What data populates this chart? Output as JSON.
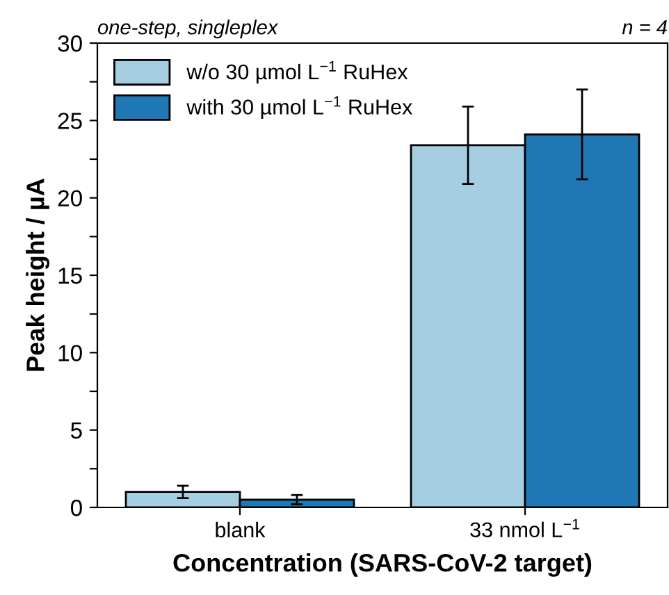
{
  "chart_data": {
    "type": "bar",
    "xlabel": "Concentration (SARS-CoV-2 target)",
    "ylabel": "Peak height / µA",
    "annotations": [
      "one-step, singleplex",
      "n = 4"
    ],
    "categories": [
      "blank",
      "33 nmol L$^{−1}$"
    ],
    "series": [
      {
        "name": "w/o 30 µmol L$^{−1}$ RuHex",
        "color": "#a6cee3",
        "values": [
          1.0,
          23.4
        ],
        "errors": [
          0.4,
          2.5
        ]
      },
      {
        "name": "with 30 µmol L$^{−1}$ RuHex",
        "color": "#1f78b4",
        "values": [
          0.5,
          24.1
        ],
        "errors": [
          0.3,
          2.9
        ]
      }
    ],
    "ylim": [
      0,
      30
    ],
    "yticks": [
      0,
      {
        "value": 2.5,
        "label": null
      },
      5,
      {
        "value": 7.5,
        "label": null
      },
      10,
      {
        "value": 12.5,
        "label": null
      },
      15,
      {
        "value": 17.5,
        "label": null
      },
      20,
      {
        "value": 22.5,
        "label": null
      },
      25,
      {
        "value": 27.5,
        "label": null
      },
      30
    ],
    "legend": "top left",
    "grid": false
  }
}
